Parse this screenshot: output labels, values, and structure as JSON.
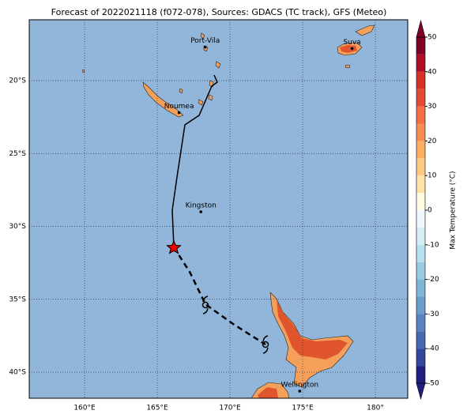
{
  "map": {
    "title": "Forecast of 2022021118 (f072-078), Sources: GDACS (TC track), GFS (Meteo)",
    "lon_ticks": [
      {
        "value": 160,
        "label": "160°E"
      },
      {
        "value": 165,
        "label": "165°E"
      },
      {
        "value": 170,
        "label": "170°E"
      },
      {
        "value": 175,
        "label": "175°E"
      },
      {
        "value": 180,
        "label": "180°"
      }
    ],
    "lat_ticks": [
      {
        "value": -20,
        "label": "20°S"
      },
      {
        "value": -25,
        "label": "25°S"
      },
      {
        "value": -30,
        "label": "30°S"
      },
      {
        "value": -35,
        "label": "35°S"
      },
      {
        "value": -40,
        "label": "40°S"
      }
    ],
    "places": [
      {
        "name": "Port-Vila",
        "lon": 168.3,
        "lat": -17.7
      },
      {
        "name": "Suva",
        "lon": 178.4,
        "lat": -17.8
      },
      {
        "name": "Noumea",
        "lon": 166.5,
        "lat": -22.2
      },
      {
        "name": "Kingston",
        "lon": 168.0,
        "lat": -29.0
      },
      {
        "name": "Wellington",
        "lon": 174.8,
        "lat": -41.3
      }
    ],
    "colorbar": {
      "label": "Max Temperature (°C)",
      "ticks": [
        50,
        40,
        30,
        20,
        10,
        0,
        -10,
        -20,
        -30,
        -40,
        -50
      ],
      "colors": [
        "#800026",
        "#b10d26",
        "#d73027",
        "#e34a33",
        "#f46d43",
        "#f88d52",
        "#fdae61",
        "#fdc880",
        "#fee3a5",
        "#fffbe0",
        "#eef8fb",
        "#d5eef5",
        "#b9e0ee",
        "#99cce3",
        "#7db6d6",
        "#6a9fcb",
        "#5983bf",
        "#4869b0",
        "#34479f",
        "#1f1f80"
      ]
    }
  }
}
